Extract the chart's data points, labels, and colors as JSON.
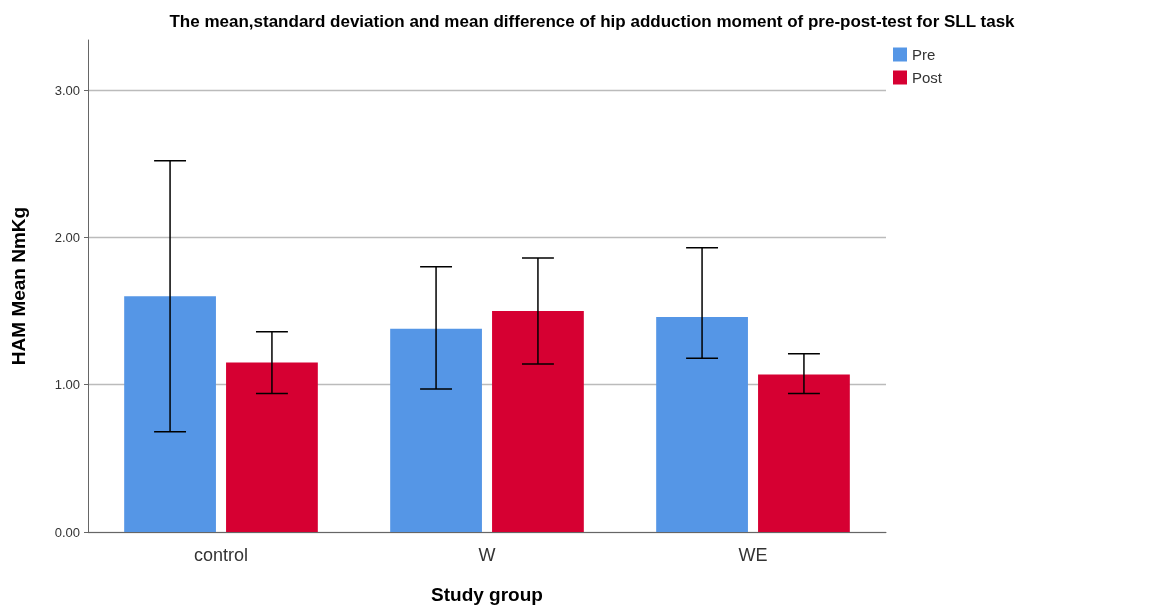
{
  "chart_data": {
    "type": "bar",
    "title": "The mean,standard deviation and mean difference of hip adduction moment of pre-post-test for SLL task",
    "xlabel": "Study group",
    "ylabel": "HAM Mean NmKg",
    "categories": [
      "control",
      "W",
      "WE"
    ],
    "series": [
      {
        "name": "Pre",
        "color": "#5596e6",
        "values": [
          1.6,
          1.38,
          1.46
        ],
        "errors": [
          [
            0.68,
            2.52
          ],
          [
            0.97,
            1.8
          ],
          [
            1.18,
            1.93
          ]
        ]
      },
      {
        "name": "Post",
        "color": "#d60032",
        "values": [
          1.15,
          1.5,
          1.07
        ],
        "errors": [
          [
            0.94,
            1.36
          ],
          [
            1.14,
            1.86
          ],
          [
            0.94,
            1.21
          ]
        ]
      }
    ],
    "ylim": [
      0,
      3.34
    ],
    "yticks": [
      {
        "value": 0,
        "label": "0.00"
      },
      {
        "value": 1,
        "label": "1.00"
      },
      {
        "value": 2,
        "label": "2.00"
      },
      {
        "value": 3,
        "label": "3.00"
      }
    ],
    "grid": "y",
    "legend": "top right"
  }
}
